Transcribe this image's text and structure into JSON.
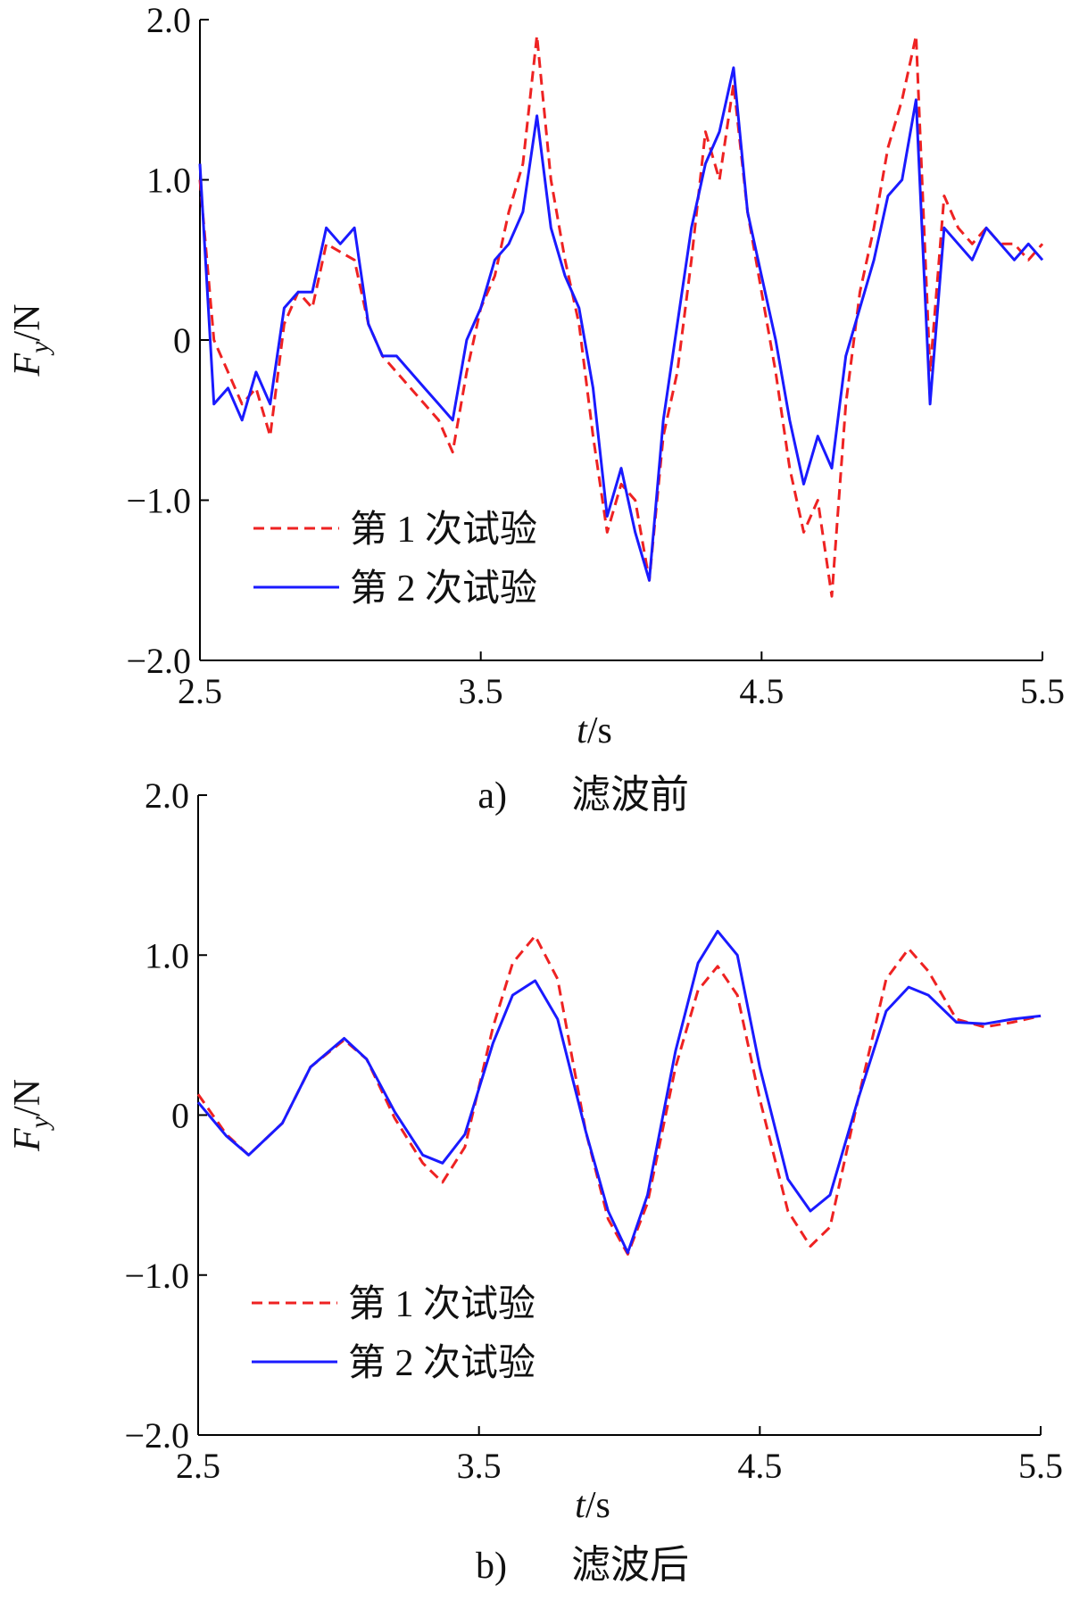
{
  "figure": {
    "panels": [
      {
        "caption_label": "a)",
        "caption_text": "滤波前"
      },
      {
        "caption_label": "b)",
        "caption_text": "滤波后"
      }
    ]
  },
  "colors": {
    "series1": "#ee2222",
    "series2": "#1a1aff",
    "axis": "#000000"
  },
  "chart_data": [
    {
      "type": "line",
      "title": "",
      "xlabel": "t/s",
      "ylabel": "Fy/N",
      "xlim": [
        2.5,
        5.5
      ],
      "ylim": [
        -2.0,
        2.0
      ],
      "xticks": [
        2.5,
        3.5,
        4.5,
        5.5
      ],
      "xtick_labels": [
        "2.5",
        "3.5",
        "4.5",
        "5.5"
      ],
      "yticks": [
        2.0,
        1.0,
        0,
        -1.0,
        -2.0
      ],
      "ytick_labels": [
        "2.0",
        "1.0",
        "0",
        "−1.0",
        "−2.0"
      ],
      "grid": false,
      "legend_position": "bottom-left",
      "series": [
        {
          "name": "第 1 次试验",
          "style": "dashed",
          "x": [
            2.5,
            2.55,
            2.6,
            2.65,
            2.7,
            2.75,
            2.8,
            2.85,
            2.9,
            2.95,
            3.0,
            3.05,
            3.1,
            3.15,
            3.2,
            3.25,
            3.3,
            3.35,
            3.4,
            3.45,
            3.5,
            3.55,
            3.6,
            3.65,
            3.7,
            3.75,
            3.8,
            3.85,
            3.9,
            3.95,
            4.0,
            4.05,
            4.1,
            4.15,
            4.2,
            4.25,
            4.3,
            4.35,
            4.4,
            4.45,
            4.5,
            4.55,
            4.6,
            4.65,
            4.7,
            4.75,
            4.8,
            4.85,
            4.9,
            4.95,
            5.0,
            5.05,
            5.1,
            5.15,
            5.2,
            5.25,
            5.3,
            5.35,
            5.4,
            5.45,
            5.5
          ],
          "y": [
            1.0,
            0.0,
            -0.2,
            -0.4,
            -0.3,
            -0.6,
            0.1,
            0.3,
            0.2,
            0.6,
            0.55,
            0.5,
            0.1,
            -0.1,
            -0.2,
            -0.3,
            -0.4,
            -0.5,
            -0.7,
            -0.2,
            0.2,
            0.4,
            0.8,
            1.1,
            1.9,
            1.0,
            0.5,
            0.1,
            -0.6,
            -1.2,
            -0.9,
            -1.0,
            -1.5,
            -0.6,
            -0.2,
            0.5,
            1.3,
            1.0,
            1.6,
            0.8,
            0.3,
            -0.2,
            -0.8,
            -1.2,
            -1.0,
            -1.6,
            -0.4,
            0.3,
            0.7,
            1.2,
            1.5,
            1.9,
            -0.2,
            0.9,
            0.7,
            0.6,
            0.7,
            0.6,
            0.6,
            0.5,
            0.6
          ]
        },
        {
          "name": "第 2 次试验",
          "style": "solid",
          "x": [
            2.5,
            2.55,
            2.6,
            2.65,
            2.7,
            2.75,
            2.8,
            2.85,
            2.9,
            2.95,
            3.0,
            3.05,
            3.1,
            3.15,
            3.2,
            3.25,
            3.3,
            3.35,
            3.4,
            3.45,
            3.5,
            3.55,
            3.6,
            3.65,
            3.7,
            3.75,
            3.8,
            3.85,
            3.9,
            3.95,
            4.0,
            4.05,
            4.1,
            4.15,
            4.2,
            4.25,
            4.3,
            4.35,
            4.4,
            4.45,
            4.5,
            4.55,
            4.6,
            4.65,
            4.7,
            4.75,
            4.8,
            4.85,
            4.9,
            4.95,
            5.0,
            5.05,
            5.1,
            5.15,
            5.2,
            5.25,
            5.3,
            5.35,
            5.4,
            5.45,
            5.5
          ],
          "y": [
            1.1,
            -0.4,
            -0.3,
            -0.5,
            -0.2,
            -0.4,
            0.2,
            0.3,
            0.3,
            0.7,
            0.6,
            0.7,
            0.1,
            -0.1,
            -0.1,
            -0.2,
            -0.3,
            -0.4,
            -0.5,
            0.0,
            0.2,
            0.5,
            0.6,
            0.8,
            1.4,
            0.7,
            0.4,
            0.2,
            -0.3,
            -1.1,
            -0.8,
            -1.2,
            -1.5,
            -0.5,
            0.1,
            0.7,
            1.1,
            1.3,
            1.7,
            0.8,
            0.4,
            0.0,
            -0.5,
            -0.9,
            -0.6,
            -0.8,
            -0.1,
            0.2,
            0.5,
            0.9,
            1.0,
            1.5,
            -0.4,
            0.7,
            0.6,
            0.5,
            0.7,
            0.6,
            0.5,
            0.6,
            0.5
          ]
        }
      ]
    },
    {
      "type": "line",
      "title": "",
      "xlabel": "t/s",
      "ylabel": "Fy/N",
      "xlim": [
        2.5,
        5.5
      ],
      "ylim": [
        -2.0,
        2.0
      ],
      "xticks": [
        2.5,
        3.5,
        4.5,
        5.5
      ],
      "xtick_labels": [
        "2.5",
        "3.5",
        "4.5",
        "5.5"
      ],
      "yticks": [
        2.0,
        1.0,
        0,
        -1.0,
        -2.0
      ],
      "ytick_labels": [
        "2.0",
        "1.0",
        "0",
        "−1.0",
        "−2.0"
      ],
      "grid": false,
      "legend_position": "bottom-left",
      "series": [
        {
          "name": "第 1 次试验",
          "style": "dashed",
          "x": [
            2.5,
            2.6,
            2.68,
            2.8,
            2.9,
            3.02,
            3.1,
            3.2,
            3.3,
            3.37,
            3.45,
            3.55,
            3.62,
            3.7,
            3.78,
            3.88,
            3.96,
            4.03,
            4.1,
            4.2,
            4.28,
            4.35,
            4.42,
            4.5,
            4.6,
            4.68,
            4.75,
            4.85,
            4.95,
            5.03,
            5.1,
            5.2,
            5.3,
            5.4,
            5.5
          ],
          "y": [
            0.13,
            -0.12,
            -0.25,
            -0.05,
            0.3,
            0.47,
            0.35,
            -0.02,
            -0.3,
            -0.42,
            -0.2,
            0.55,
            0.95,
            1.12,
            0.85,
            -0.1,
            -0.65,
            -0.87,
            -0.55,
            0.3,
            0.78,
            0.93,
            0.75,
            0.1,
            -0.6,
            -0.82,
            -0.7,
            0.1,
            0.85,
            1.04,
            0.9,
            0.6,
            0.55,
            0.58,
            0.62
          ]
        },
        {
          "name": "第 2 次试验",
          "style": "solid",
          "x": [
            2.5,
            2.6,
            2.68,
            2.8,
            2.9,
            3.02,
            3.1,
            3.2,
            3.3,
            3.37,
            3.45,
            3.55,
            3.62,
            3.7,
            3.78,
            3.88,
            3.96,
            4.03,
            4.1,
            4.2,
            4.28,
            4.35,
            4.42,
            4.5,
            4.6,
            4.68,
            4.75,
            4.85,
            4.95,
            5.03,
            5.1,
            5.2,
            5.3,
            5.4,
            5.5
          ],
          "y": [
            0.08,
            -0.13,
            -0.25,
            -0.05,
            0.3,
            0.48,
            0.35,
            0.02,
            -0.25,
            -0.3,
            -0.12,
            0.45,
            0.75,
            0.84,
            0.6,
            -0.1,
            -0.6,
            -0.86,
            -0.5,
            0.4,
            0.95,
            1.15,
            1.0,
            0.3,
            -0.4,
            -0.6,
            -0.5,
            0.1,
            0.65,
            0.8,
            0.75,
            0.58,
            0.57,
            0.6,
            0.62
          ]
        }
      ]
    }
  ]
}
